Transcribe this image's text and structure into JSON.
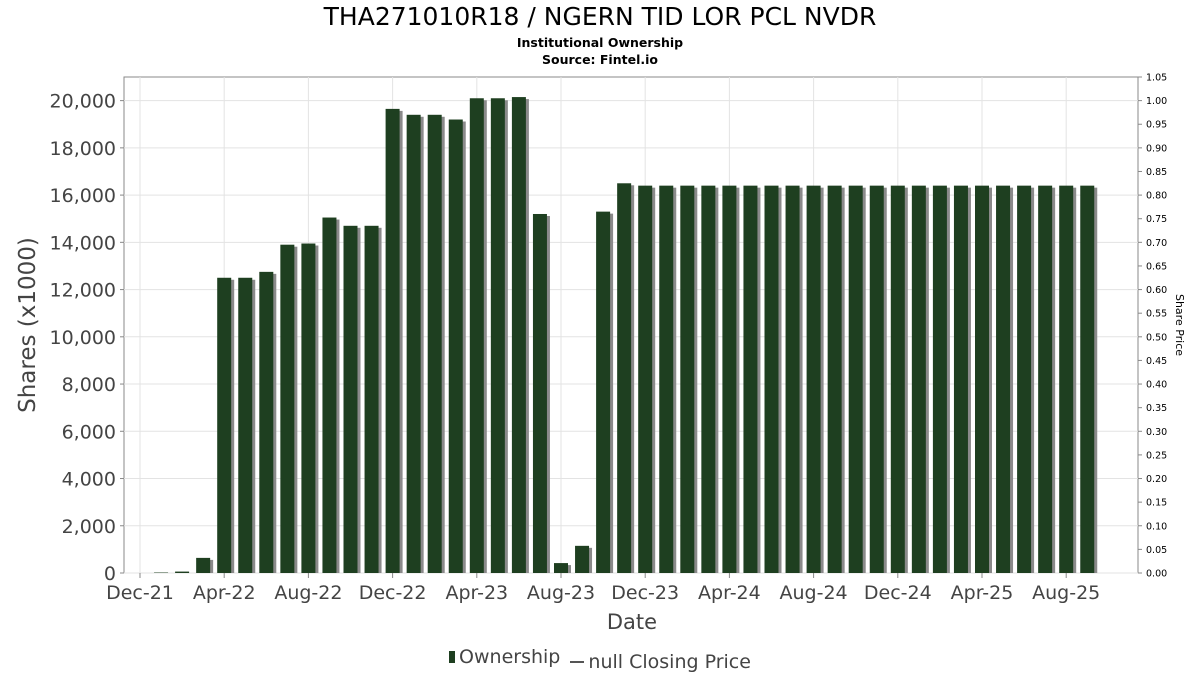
{
  "header": {
    "title": "THA271010R18 / NGERN TID LOR PCL NVDR",
    "subtitle": "Institutional Ownership",
    "source": "Source: Fintel.io"
  },
  "legend": {
    "ownership": "Ownership",
    "closing_price": "null Closing Price"
  },
  "colors": {
    "bar": "#1e3f20",
    "bar_shadow": "#8a8a8a",
    "grid": "#e3e3e3"
  },
  "chart_data": {
    "type": "bar",
    "title": "THA271010R18 / NGERN TID LOR PCL NVDR",
    "xlabel": "Date",
    "ylabel": "Shares (x1000)",
    "y2label": "Share Price",
    "ylim": [
      0,
      21000
    ],
    "y2lim": [
      0,
      1.05
    ],
    "grid": true,
    "legend_position": "bottom",
    "yticks": [
      "0",
      "2,000",
      "4,000",
      "6,000",
      "8,000",
      "10,000",
      "12,000",
      "14,000",
      "16,000",
      "18,000",
      "20,000"
    ],
    "y2ticks": [
      "0.00",
      "0.05",
      "0.10",
      "0.15",
      "0.20",
      "0.25",
      "0.30",
      "0.35",
      "0.40",
      "0.45",
      "0.50",
      "0.55",
      "0.60",
      "0.65",
      "0.70",
      "0.75",
      "0.80",
      "0.85",
      "0.90",
      "0.95",
      "1.00",
      "1.05"
    ],
    "xticks": [
      "Dec-21",
      "Apr-22",
      "Aug-22",
      "Dec-22",
      "Apr-23",
      "Aug-23",
      "Dec-23",
      "Apr-24",
      "Aug-24",
      "Dec-24",
      "Apr-25",
      "Aug-25"
    ],
    "series": [
      {
        "name": "Ownership",
        "values": [
          0,
          20,
          60,
          640,
          12500,
          12500,
          12750,
          13900,
          13950,
          15050,
          14700,
          14700,
          19650,
          19400,
          19400,
          19200,
          20100,
          20100,
          20150,
          15200,
          420,
          1150,
          15300,
          16500,
          16400,
          16400,
          16400,
          16400,
          16400,
          16400,
          16400,
          16400,
          16400,
          16400,
          16400,
          16400,
          16400,
          16400,
          16400,
          16400,
          16400,
          16400,
          16400,
          16400,
          16400,
          16400
        ]
      }
    ]
  }
}
